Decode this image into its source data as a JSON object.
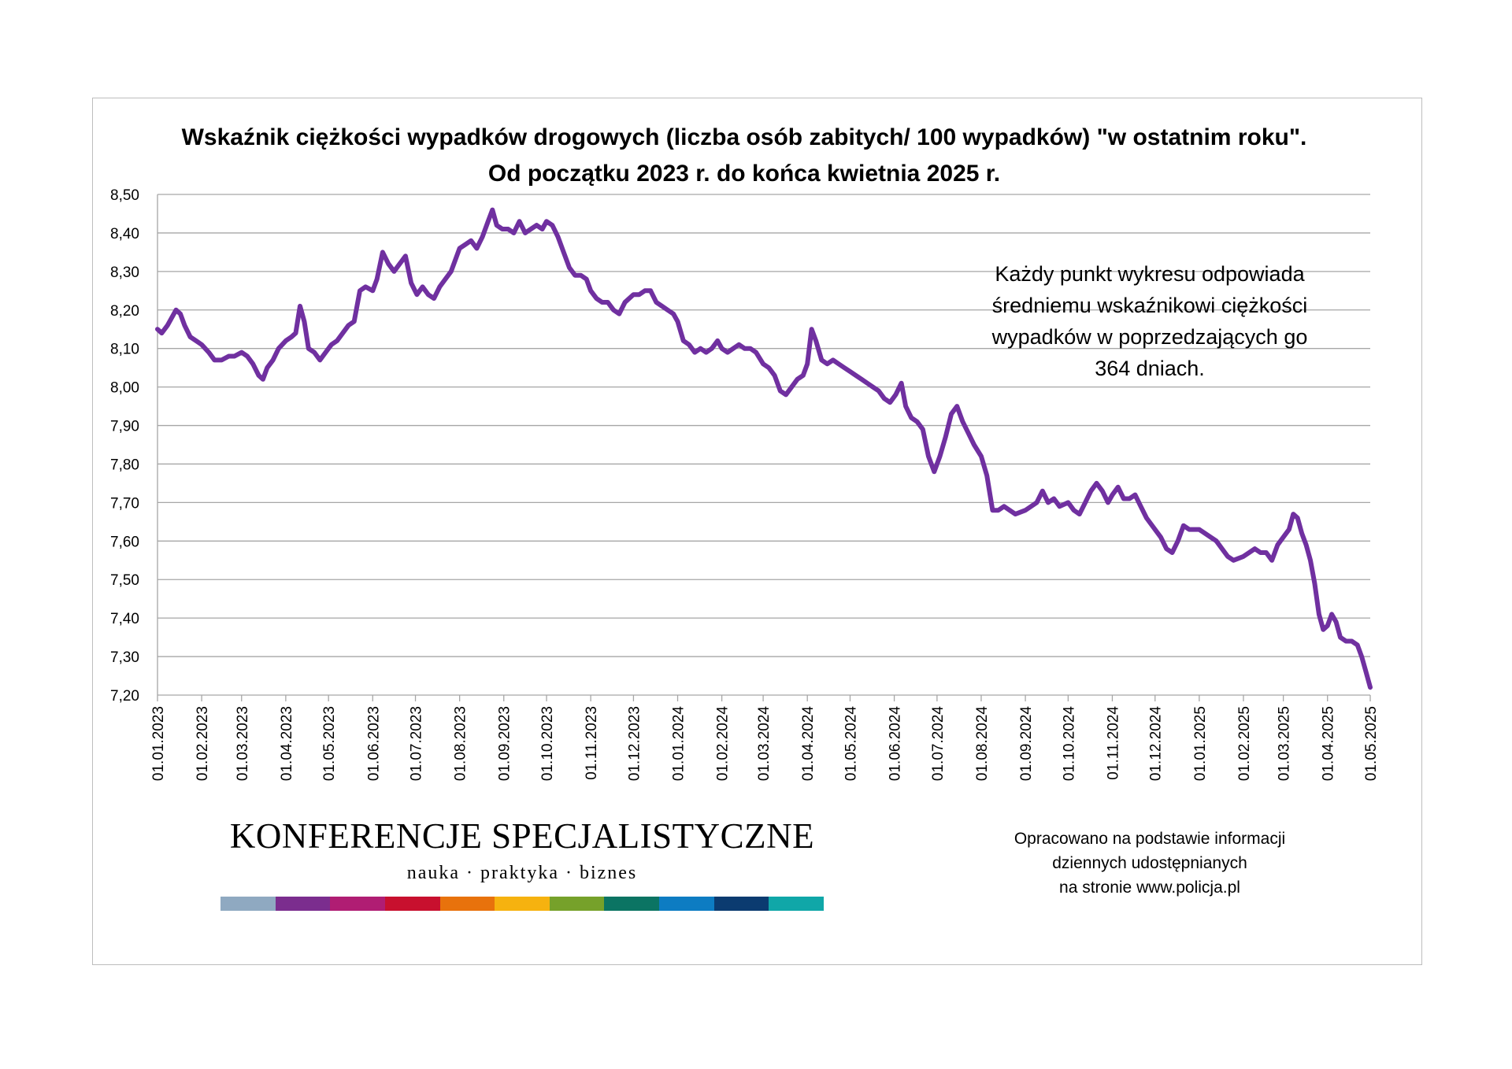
{
  "chart_data": {
    "type": "line",
    "title": "Wskaźnik ciężkości wypadków drogowych (liczba osób zabitych/ 100 wypadków) \"w ostatnim roku\".",
    "subtitle": "Od początku 2023 r. do końca kwietnia 2025 r.",
    "annotation": [
      "Każdy punkt wykresu odpowiada",
      "średniemu wskaźnikowi ciężkości",
      "wypadków w poprzedzających go",
      "364 dniach."
    ],
    "xlabel": "",
    "ylabel": "",
    "ylim": [
      7.2,
      8.5
    ],
    "xlim": [
      "2023-01-01",
      "2025-05-01"
    ],
    "grid": true,
    "legend": "none",
    "y_ticks": [
      "8,50",
      "8,40",
      "8,30",
      "8,20",
      "8,10",
      "8,00",
      "7,90",
      "7,80",
      "7,70",
      "7,60",
      "7,50",
      "7,40",
      "7,30",
      "7,20"
    ],
    "y_tick_values": [
      8.5,
      8.4,
      8.3,
      8.2,
      8.1,
      8.0,
      7.9,
      7.8,
      7.7,
      7.6,
      7.5,
      7.4,
      7.3,
      7.2
    ],
    "x_ticks": [
      "01.01.2023",
      "01.02.2023",
      "01.03.2023",
      "01.04.2023",
      "01.05.2023",
      "01.06.2023",
      "01.07.2023",
      "01.08.2023",
      "01.09.2023",
      "01.10.2023",
      "01.11.2023",
      "01.12.2023",
      "01.01.2024",
      "01.02.2024",
      "01.03.2024",
      "01.04.2024",
      "01.05.2024",
      "01.06.2024",
      "01.07.2024",
      "01.08.2024",
      "01.09.2024",
      "01.10.2024",
      "01.11.2024",
      "01.12.2024",
      "01.01.2025",
      "01.02.2025",
      "01.03.2025",
      "01.04.2025",
      "01.05.2025"
    ],
    "series": [
      {
        "color": "#7030a0",
        "points": [
          [
            "2023-01-01",
            8.15
          ],
          [
            "2023-01-04",
            8.14
          ],
          [
            "2023-01-08",
            8.16
          ],
          [
            "2023-01-11",
            8.18
          ],
          [
            "2023-01-14",
            8.2
          ],
          [
            "2023-01-17",
            8.19
          ],
          [
            "2023-01-20",
            8.16
          ],
          [
            "2023-01-24",
            8.13
          ],
          [
            "2023-01-28",
            8.12
          ],
          [
            "2023-02-01",
            8.11
          ],
          [
            "2023-02-06",
            8.09
          ],
          [
            "2023-02-10",
            8.07
          ],
          [
            "2023-02-15",
            8.07
          ],
          [
            "2023-02-20",
            8.08
          ],
          [
            "2023-02-24",
            8.08
          ],
          [
            "2023-03-01",
            8.09
          ],
          [
            "2023-03-05",
            8.08
          ],
          [
            "2023-03-09",
            8.06
          ],
          [
            "2023-03-13",
            8.03
          ],
          [
            "2023-03-16",
            8.02
          ],
          [
            "2023-03-19",
            8.05
          ],
          [
            "2023-03-23",
            8.07
          ],
          [
            "2023-03-27",
            8.1
          ],
          [
            "2023-04-01",
            8.12
          ],
          [
            "2023-04-05",
            8.13
          ],
          [
            "2023-04-08",
            8.14
          ],
          [
            "2023-04-11",
            8.21
          ],
          [
            "2023-04-14",
            8.17
          ],
          [
            "2023-04-17",
            8.1
          ],
          [
            "2023-04-21",
            8.09
          ],
          [
            "2023-04-25",
            8.07
          ],
          [
            "2023-04-29",
            8.09
          ],
          [
            "2023-05-03",
            8.11
          ],
          [
            "2023-05-07",
            8.12
          ],
          [
            "2023-05-11",
            8.14
          ],
          [
            "2023-05-15",
            8.16
          ],
          [
            "2023-05-19",
            8.17
          ],
          [
            "2023-05-23",
            8.25
          ],
          [
            "2023-05-27",
            8.26
          ],
          [
            "2023-06-01",
            8.25
          ],
          [
            "2023-06-04",
            8.28
          ],
          [
            "2023-06-08",
            8.35
          ],
          [
            "2023-06-12",
            8.32
          ],
          [
            "2023-06-16",
            8.3
          ],
          [
            "2023-06-20",
            8.32
          ],
          [
            "2023-06-24",
            8.34
          ],
          [
            "2023-06-28",
            8.27
          ],
          [
            "2023-07-02",
            8.24
          ],
          [
            "2023-07-06",
            8.26
          ],
          [
            "2023-07-10",
            8.24
          ],
          [
            "2023-07-14",
            8.23
          ],
          [
            "2023-07-18",
            8.26
          ],
          [
            "2023-07-22",
            8.28
          ],
          [
            "2023-07-26",
            8.3
          ],
          [
            "2023-08-01",
            8.36
          ],
          [
            "2023-08-05",
            8.37
          ],
          [
            "2023-08-09",
            8.38
          ],
          [
            "2023-08-13",
            8.36
          ],
          [
            "2023-08-17",
            8.39
          ],
          [
            "2023-08-21",
            8.43
          ],
          [
            "2023-08-24",
            8.46
          ],
          [
            "2023-08-27",
            8.42
          ],
          [
            "2023-08-31",
            8.41
          ],
          [
            "2023-09-04",
            8.41
          ],
          [
            "2023-09-08",
            8.4
          ],
          [
            "2023-09-12",
            8.43
          ],
          [
            "2023-09-16",
            8.4
          ],
          [
            "2023-09-20",
            8.41
          ],
          [
            "2023-09-24",
            8.42
          ],
          [
            "2023-09-28",
            8.41
          ],
          [
            "2023-10-01",
            8.43
          ],
          [
            "2023-10-05",
            8.42
          ],
          [
            "2023-10-09",
            8.39
          ],
          [
            "2023-10-13",
            8.35
          ],
          [
            "2023-10-17",
            8.31
          ],
          [
            "2023-10-21",
            8.29
          ],
          [
            "2023-10-25",
            8.29
          ],
          [
            "2023-10-29",
            8.28
          ],
          [
            "2023-11-01",
            8.25
          ],
          [
            "2023-11-05",
            8.23
          ],
          [
            "2023-11-09",
            8.22
          ],
          [
            "2023-11-13",
            8.22
          ],
          [
            "2023-11-17",
            8.2
          ],
          [
            "2023-11-21",
            8.19
          ],
          [
            "2023-11-25",
            8.22
          ],
          [
            "2023-12-01",
            8.24
          ],
          [
            "2023-12-05",
            8.24
          ],
          [
            "2023-12-09",
            8.25
          ],
          [
            "2023-12-13",
            8.25
          ],
          [
            "2023-12-17",
            8.22
          ],
          [
            "2023-12-21",
            8.21
          ],
          [
            "2023-12-25",
            8.2
          ],
          [
            "2023-12-29",
            8.19
          ],
          [
            "2024-01-01",
            8.17
          ],
          [
            "2024-01-05",
            8.12
          ],
          [
            "2024-01-09",
            8.11
          ],
          [
            "2024-01-13",
            8.09
          ],
          [
            "2024-01-17",
            8.1
          ],
          [
            "2024-01-21",
            8.09
          ],
          [
            "2024-01-25",
            8.1
          ],
          [
            "2024-01-29",
            8.12
          ],
          [
            "2024-02-01",
            8.1
          ],
          [
            "2024-02-05",
            8.09
          ],
          [
            "2024-02-09",
            8.1
          ],
          [
            "2024-02-13",
            8.11
          ],
          [
            "2024-02-17",
            8.1
          ],
          [
            "2024-02-21",
            8.1
          ],
          [
            "2024-02-25",
            8.09
          ],
          [
            "2024-03-01",
            8.06
          ],
          [
            "2024-03-05",
            8.05
          ],
          [
            "2024-03-09",
            8.03
          ],
          [
            "2024-03-13",
            7.99
          ],
          [
            "2024-03-17",
            7.98
          ],
          [
            "2024-03-21",
            8.0
          ],
          [
            "2024-03-25",
            8.02
          ],
          [
            "2024-03-29",
            8.03
          ],
          [
            "2024-04-01",
            8.06
          ],
          [
            "2024-04-04",
            8.15
          ],
          [
            "2024-04-07",
            8.12
          ],
          [
            "2024-04-11",
            8.07
          ],
          [
            "2024-04-15",
            8.06
          ],
          [
            "2024-04-19",
            8.07
          ],
          [
            "2024-04-23",
            8.06
          ],
          [
            "2024-04-27",
            8.05
          ],
          [
            "2024-05-01",
            8.04
          ],
          [
            "2024-05-05",
            8.03
          ],
          [
            "2024-05-09",
            8.02
          ],
          [
            "2024-05-13",
            8.01
          ],
          [
            "2024-05-17",
            8.0
          ],
          [
            "2024-05-21",
            7.99
          ],
          [
            "2024-05-25",
            7.97
          ],
          [
            "2024-05-29",
            7.96
          ],
          [
            "2024-06-02",
            7.98
          ],
          [
            "2024-06-06",
            8.01
          ],
          [
            "2024-06-09",
            7.95
          ],
          [
            "2024-06-13",
            7.92
          ],
          [
            "2024-06-17",
            7.91
          ],
          [
            "2024-06-21",
            7.89
          ],
          [
            "2024-06-25",
            7.82
          ],
          [
            "2024-06-29",
            7.78
          ],
          [
            "2024-07-03",
            7.82
          ],
          [
            "2024-07-07",
            7.87
          ],
          [
            "2024-07-11",
            7.93
          ],
          [
            "2024-07-15",
            7.95
          ],
          [
            "2024-07-19",
            7.91
          ],
          [
            "2024-07-23",
            7.88
          ],
          [
            "2024-07-27",
            7.85
          ],
          [
            "2024-08-01",
            7.82
          ],
          [
            "2024-08-05",
            7.77
          ],
          [
            "2024-08-09",
            7.68
          ],
          [
            "2024-08-13",
            7.68
          ],
          [
            "2024-08-17",
            7.69
          ],
          [
            "2024-08-21",
            7.68
          ],
          [
            "2024-08-25",
            7.67
          ],
          [
            "2024-09-01",
            7.68
          ],
          [
            "2024-09-05",
            7.69
          ],
          [
            "2024-09-09",
            7.7
          ],
          [
            "2024-09-13",
            7.73
          ],
          [
            "2024-09-17",
            7.7
          ],
          [
            "2024-09-21",
            7.71
          ],
          [
            "2024-09-25",
            7.69
          ],
          [
            "2024-10-01",
            7.7
          ],
          [
            "2024-10-05",
            7.68
          ],
          [
            "2024-10-09",
            7.67
          ],
          [
            "2024-10-13",
            7.7
          ],
          [
            "2024-10-17",
            7.73
          ],
          [
            "2024-10-21",
            7.75
          ],
          [
            "2024-10-25",
            7.73
          ],
          [
            "2024-10-29",
            7.7
          ],
          [
            "2024-11-01",
            7.72
          ],
          [
            "2024-11-05",
            7.74
          ],
          [
            "2024-11-09",
            7.71
          ],
          [
            "2024-11-13",
            7.71
          ],
          [
            "2024-11-17",
            7.72
          ],
          [
            "2024-11-21",
            7.69
          ],
          [
            "2024-11-25",
            7.66
          ],
          [
            "2024-12-01",
            7.63
          ],
          [
            "2024-12-05",
            7.61
          ],
          [
            "2024-12-09",
            7.58
          ],
          [
            "2024-12-13",
            7.57
          ],
          [
            "2024-12-17",
            7.6
          ],
          [
            "2024-12-21",
            7.64
          ],
          [
            "2024-12-25",
            7.63
          ],
          [
            "2025-01-01",
            7.63
          ],
          [
            "2025-01-05",
            7.62
          ],
          [
            "2025-01-09",
            7.61
          ],
          [
            "2025-01-13",
            7.6
          ],
          [
            "2025-01-17",
            7.58
          ],
          [
            "2025-01-21",
            7.56
          ],
          [
            "2025-01-25",
            7.55
          ],
          [
            "2025-02-01",
            7.56
          ],
          [
            "2025-02-05",
            7.57
          ],
          [
            "2025-02-09",
            7.58
          ],
          [
            "2025-02-13",
            7.57
          ],
          [
            "2025-02-17",
            7.57
          ],
          [
            "2025-02-21",
            7.55
          ],
          [
            "2025-02-25",
            7.59
          ],
          [
            "2025-03-01",
            7.61
          ],
          [
            "2025-03-05",
            7.63
          ],
          [
            "2025-03-08",
            7.67
          ],
          [
            "2025-03-11",
            7.66
          ],
          [
            "2025-03-14",
            7.62
          ],
          [
            "2025-03-17",
            7.59
          ],
          [
            "2025-03-20",
            7.55
          ],
          [
            "2025-03-23",
            7.49
          ],
          [
            "2025-03-26",
            7.41
          ],
          [
            "2025-03-29",
            7.37
          ],
          [
            "2025-04-01",
            7.38
          ],
          [
            "2025-04-04",
            7.41
          ],
          [
            "2025-04-07",
            7.39
          ],
          [
            "2025-04-10",
            7.35
          ],
          [
            "2025-04-14",
            7.34
          ],
          [
            "2025-04-18",
            7.34
          ],
          [
            "2025-04-22",
            7.33
          ],
          [
            "2025-04-25",
            7.3
          ],
          [
            "2025-04-28",
            7.26
          ],
          [
            "2025-05-01",
            7.22
          ]
        ]
      }
    ]
  },
  "logo": {
    "title": "KONFERENCJE SPECJALISTYCZNE",
    "subtitle": "nauka · praktyka · biznes",
    "bar_colors": [
      "#8fa9c1",
      "#7b2d8e",
      "#b01d73",
      "#c8102e",
      "#e8720c",
      "#f6b20f",
      "#76a12a",
      "#0b7463",
      "#0d7cc2",
      "#0b3b70",
      "#10a7a8"
    ]
  },
  "source": [
    "Opracowano na podstawie informacji",
    "dziennych udostępnianych",
    "na stronie www.policja.pl"
  ]
}
